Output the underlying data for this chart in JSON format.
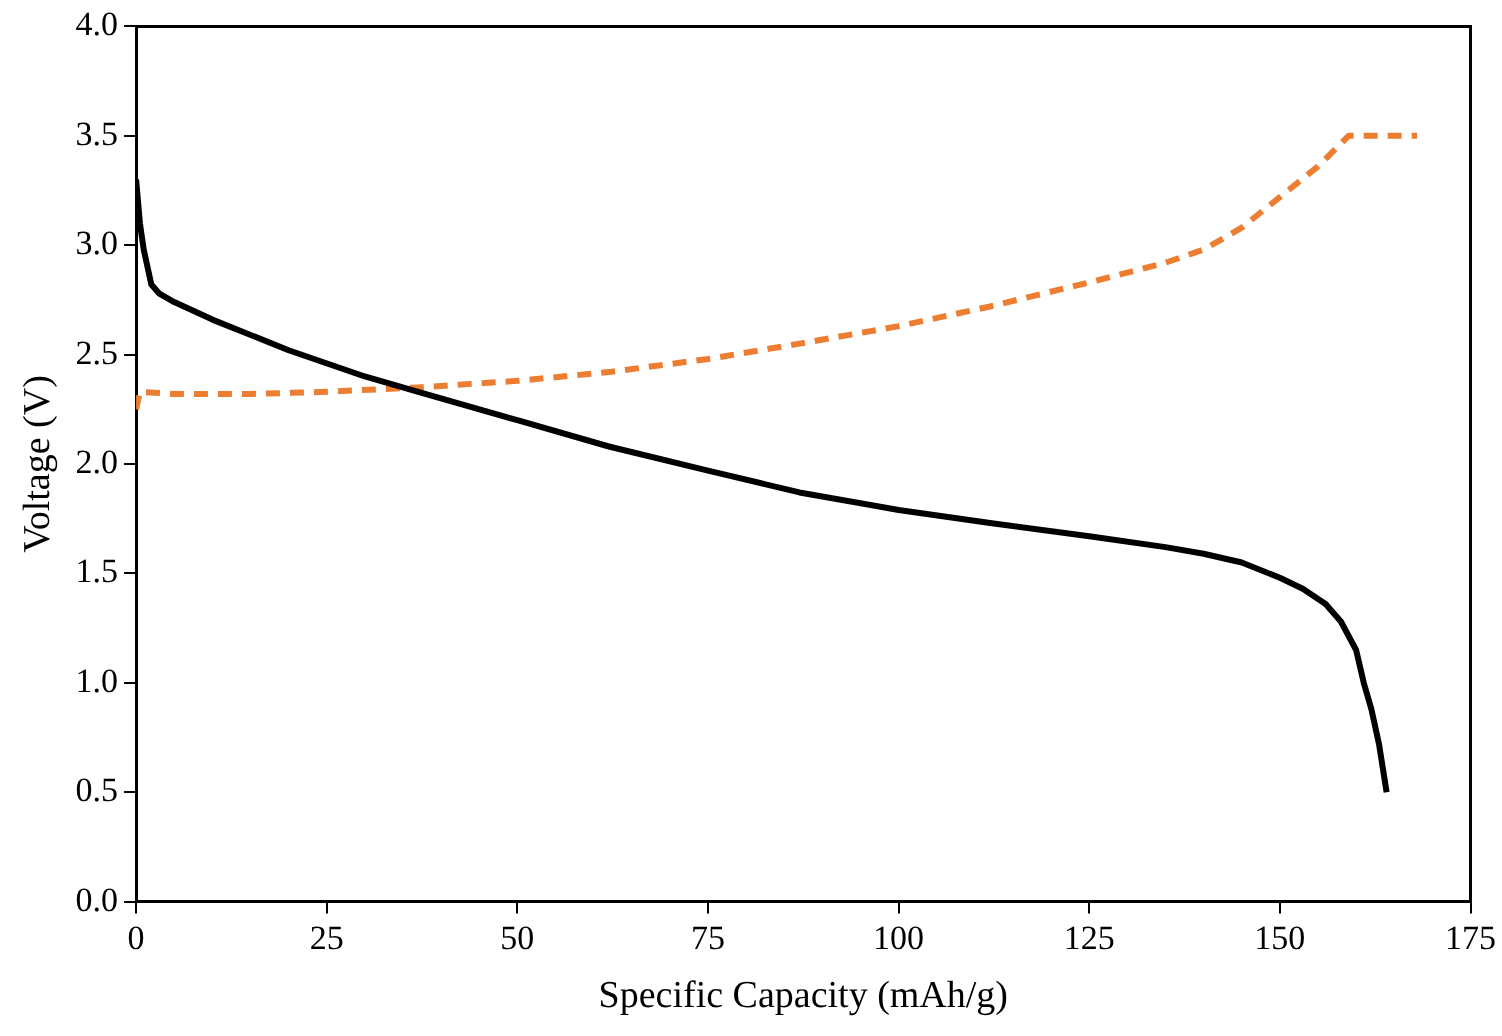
{
  "chart_data": {
    "type": "line",
    "xlabel": "Specific Capacity (mAh/g)",
    "ylabel": "Voltage (V)",
    "xlim": [
      0,
      175
    ],
    "xticks": [
      0,
      25,
      50,
      75,
      100,
      125,
      150,
      175
    ],
    "ylim": [
      0,
      4
    ],
    "yticks": [
      {
        "value": 0,
        "label": "0.0"
      },
      {
        "value": 0.5,
        "label": "0.5"
      },
      {
        "value": 1,
        "label": "1.0"
      },
      {
        "value": 1.5,
        "label": "1.5"
      },
      {
        "value": 2,
        "label": "2.0"
      },
      {
        "value": 2.5,
        "label": "2.5"
      },
      {
        "value": 3,
        "label": "3.0"
      },
      {
        "value": 3.5,
        "label": "3.5"
      },
      {
        "value": 4,
        "label": "4.0"
      }
    ],
    "grid": false,
    "legend": false,
    "marker": "none",
    "series": [
      {
        "color": "#000000",
        "line_style": "solid",
        "x": [
          0,
          0.5,
          1,
          2,
          3,
          5,
          10,
          20,
          30,
          37,
          50,
          62,
          75,
          87,
          100,
          112,
          125,
          135,
          140,
          145,
          150,
          153,
          156,
          158,
          160,
          161,
          162,
          163,
          164
        ],
        "values": [
          3.3,
          3.1,
          2.98,
          2.82,
          2.78,
          2.74,
          2.66,
          2.52,
          2.4,
          2.33,
          2.2,
          2.08,
          1.97,
          1.87,
          1.79,
          1.73,
          1.67,
          1.62,
          1.59,
          1.55,
          1.48,
          1.43,
          1.36,
          1.28,
          1.15,
          1.0,
          0.88,
          0.72,
          0.5
        ]
      },
      {
        "color": "#ed7d31",
        "line_style": "dashed",
        "x": [
          0,
          0.5,
          5,
          15,
          25,
          37,
          50,
          62,
          75,
          87,
          100,
          112,
          125,
          135,
          140,
          145,
          150,
          155,
          159,
          168
        ],
        "values": [
          2.25,
          2.33,
          2.32,
          2.32,
          2.33,
          2.35,
          2.38,
          2.42,
          2.48,
          2.55,
          2.63,
          2.72,
          2.83,
          2.92,
          2.98,
          3.08,
          3.22,
          3.36,
          3.5,
          3.5
        ]
      }
    ]
  }
}
